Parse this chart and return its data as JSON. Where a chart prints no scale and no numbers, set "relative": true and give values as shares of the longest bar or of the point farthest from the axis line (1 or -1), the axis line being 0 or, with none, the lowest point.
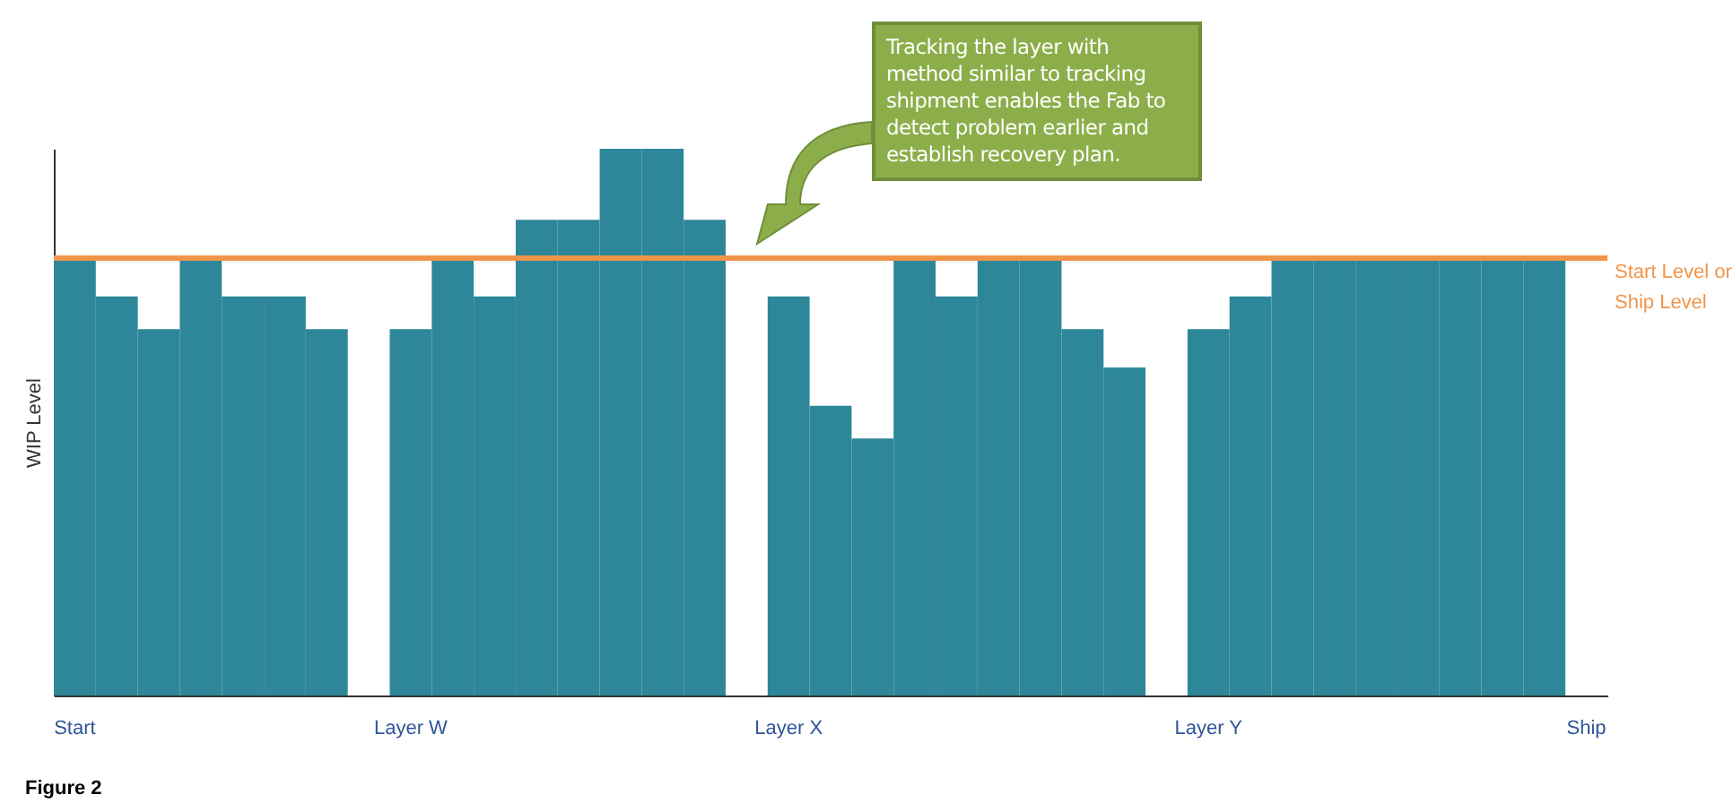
{
  "chart_data": {
    "type": "bar",
    "relative": true,
    "ylabel": "WIP Level",
    "color": "#2e8799",
    "categories": [
      "Start",
      null,
      null,
      null,
      null,
      null,
      null,
      null,
      "Layer W",
      null,
      null,
      null,
      null,
      null,
      null,
      null,
      null,
      "Layer X",
      null,
      null,
      null,
      null,
      null,
      null,
      null,
      null,
      null,
      "Layer Y",
      null,
      null,
      null,
      null,
      null,
      null,
      null,
      null,
      "Ship"
    ],
    "values": [
      0.8,
      0.73,
      0.67,
      0.8,
      0.73,
      0.73,
      0.67,
      null,
      0.67,
      0.8,
      0.73,
      0.87,
      0.87,
      1,
      1,
      0.87,
      null,
      0.73,
      0.53,
      0.47,
      0.8,
      0.73,
      0.8,
      0.8,
      0.67,
      0.6,
      null,
      0.67,
      0.73,
      0.8,
      0.8,
      0.8,
      0.8,
      0.8,
      0.8,
      0.8,
      null
    ],
    "ref_lines": [
      {
        "axis": "y",
        "value": 0.8,
        "label": "Start Level or Ship Level",
        "color": "#f0954a"
      }
    ],
    "annotations": [
      "Tracking the layer with method similar to tracking shipment enables the Fab to detect problem earlier and establish recovery plan.",
      "Figure 2"
    ]
  }
}
